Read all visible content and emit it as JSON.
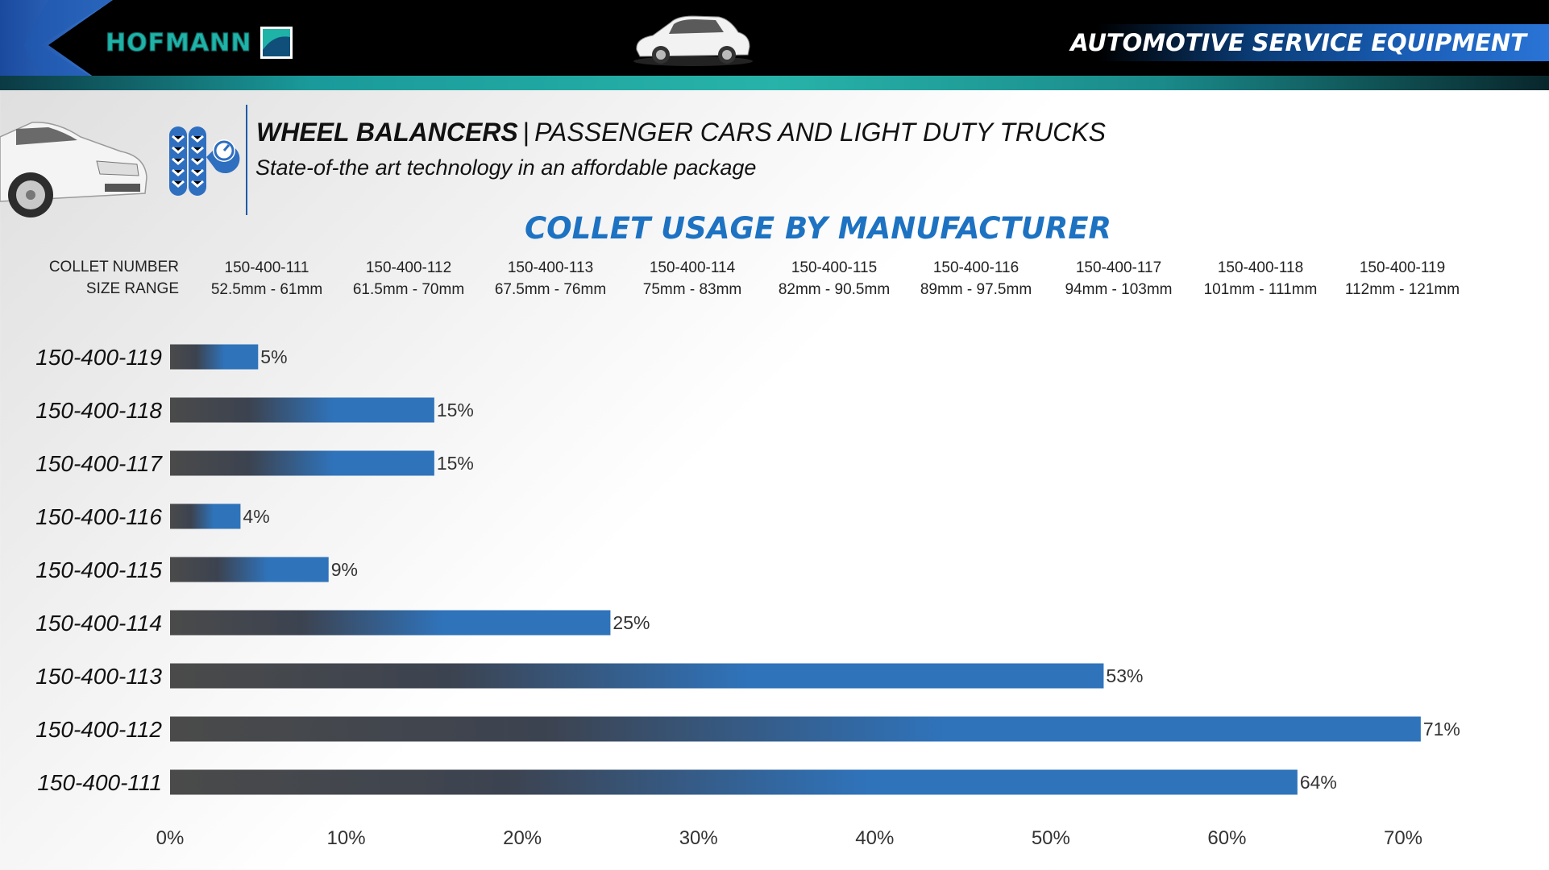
{
  "banner": {
    "brand": "HOFMANN",
    "service_label": "AUTOMOTIVE SERVICE EQUIPMENT",
    "stripe_color": "#27b3a9",
    "accent_color": "#1a5fb8"
  },
  "header": {
    "headline_bold": "WHEEL BALANCERS",
    "headline_separator": "|",
    "headline_rest": "PASSENGER CARS AND LIGHT DUTY TRUCKS",
    "tagline": "State-of-the art technology in an affordable package",
    "icons": [
      "car-icon",
      "tire-gauge-icon"
    ]
  },
  "reference_table": {
    "row_labels": [
      "COLLET NUMBER",
      "SIZE RANGE"
    ],
    "columns": [
      {
        "collet": "150-400-111",
        "range": "52.5mm - 61mm"
      },
      {
        "collet": "150-400-112",
        "range": "61.5mm - 70mm"
      },
      {
        "collet": "150-400-113",
        "range": "67.5mm - 76mm"
      },
      {
        "collet": "150-400-114",
        "range": "75mm - 83mm"
      },
      {
        "collet": "150-400-115",
        "range": "82mm - 90.5mm"
      },
      {
        "collet": "150-400-116",
        "range": "89mm - 97.5mm"
      },
      {
        "collet": "150-400-117",
        "range": "94mm - 103mm"
      },
      {
        "collet": "150-400-118",
        "range": "101mm - 111mm"
      },
      {
        "collet": "150-400-119",
        "range": "112mm - 121mm"
      }
    ]
  },
  "chart_data": {
    "type": "bar",
    "orientation": "horizontal",
    "title": "COLLET USAGE BY MANUFACTURER",
    "categories": [
      "150-400-119",
      "150-400-118",
      "150-400-117",
      "150-400-116",
      "150-400-115",
      "150-400-114",
      "150-400-113",
      "150-400-112",
      "150-400-111"
    ],
    "values": [
      5,
      15,
      15,
      4,
      9,
      25,
      53,
      71,
      64
    ],
    "data_labels": [
      "5%",
      "15%",
      "15%",
      "4%",
      "9%",
      "25%",
      "53%",
      "71%",
      "64%"
    ],
    "xlim": [
      0,
      70
    ],
    "xticks": [
      0,
      10,
      20,
      30,
      40,
      50,
      60,
      70
    ],
    "xtick_labels": [
      "0%",
      "10%",
      "20%",
      "30%",
      "40%",
      "50%",
      "60%",
      "70%"
    ],
    "xlabel": "",
    "ylabel": "",
    "grid": false,
    "legend": "none",
    "bar_color_start": "#4a4a4a",
    "bar_color_end": "#2f73bb"
  }
}
